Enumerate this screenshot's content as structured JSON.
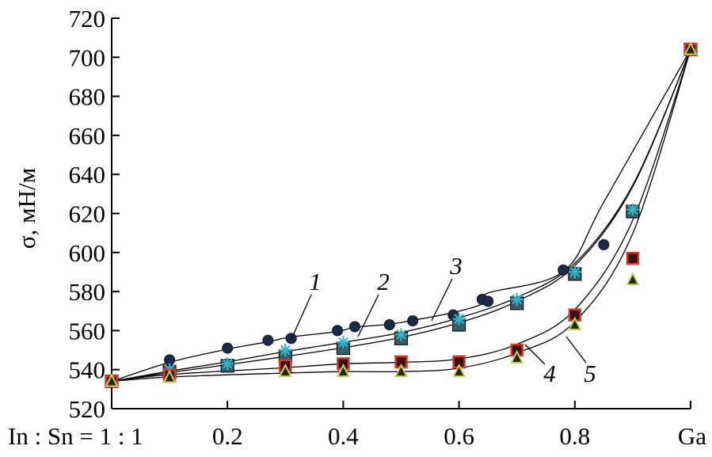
{
  "chart_data": {
    "type": "scatter",
    "title": "",
    "ylabel": "σ, мН/м",
    "xlabel": "",
    "xlim": [
      0,
      1
    ],
    "ylim": [
      520,
      720
    ],
    "yticks": [
      520,
      540,
      560,
      580,
      600,
      620,
      640,
      660,
      680,
      700,
      720
    ],
    "ytick_labels": [
      "520",
      "540",
      "560",
      "580",
      "600",
      "620",
      "640",
      "660",
      "680",
      "700",
      "720"
    ],
    "xticks": [
      0,
      0.2,
      0.4,
      0.6,
      0.8,
      1.0
    ],
    "xtick_labels": [
      "In : Sn = 1 : 1",
      "0.2",
      "0.4",
      "0.6",
      "0.8",
      "Ga"
    ],
    "grid": false,
    "series": [
      {
        "name": "1",
        "marker": "circle",
        "color": "#1a2a4a",
        "x": [
          0,
          0.1,
          0.2,
          0.27,
          0.31,
          0.39,
          0.42,
          0.48,
          0.52,
          0.59,
          0.64,
          0.65,
          0.78,
          0.85,
          1.0
        ],
        "y": [
          534,
          545,
          551,
          555,
          556,
          560,
          562,
          563,
          565,
          568,
          576,
          575,
          591,
          604,
          704
        ]
      },
      {
        "name": "2",
        "marker": "square",
        "color": "#3a5a6a",
        "x": [
          0,
          0.1,
          0.2,
          0.3,
          0.4,
          0.5,
          0.6,
          0.7,
          0.8,
          0.9,
          1.0
        ],
        "y": [
          534,
          539,
          542,
          547,
          551,
          556,
          563,
          574,
          589,
          621,
          704
        ]
      },
      {
        "name": "3",
        "marker": "asterisk",
        "color": "#2fb7c9",
        "x": [
          0,
          0.1,
          0.2,
          0.3,
          0.4,
          0.5,
          0.6,
          0.7,
          0.8,
          0.9,
          1.0
        ],
        "y": [
          534,
          540,
          543,
          550,
          554,
          558,
          566,
          576,
          590,
          622,
          704
        ]
      },
      {
        "name": "4",
        "marker": "square-red",
        "color": "#d33a2a",
        "x": [
          0,
          0.1,
          0.3,
          0.4,
          0.5,
          0.6,
          0.7,
          0.8,
          0.9,
          1.0
        ],
        "y": [
          534,
          537,
          542,
          543,
          544,
          544,
          550,
          568,
          597,
          704
        ]
      },
      {
        "name": "5",
        "marker": "triangle",
        "color": "#c9cf5a",
        "x": [
          0,
          0.1,
          0.3,
          0.4,
          0.5,
          0.6,
          0.7,
          0.8,
          0.9,
          1.0
        ],
        "y": [
          534,
          536,
          539,
          539,
          539,
          539,
          546,
          563,
          586,
          704
        ]
      }
    ],
    "annotations": [
      "1",
      "2",
      "3",
      "4",
      "5"
    ]
  }
}
